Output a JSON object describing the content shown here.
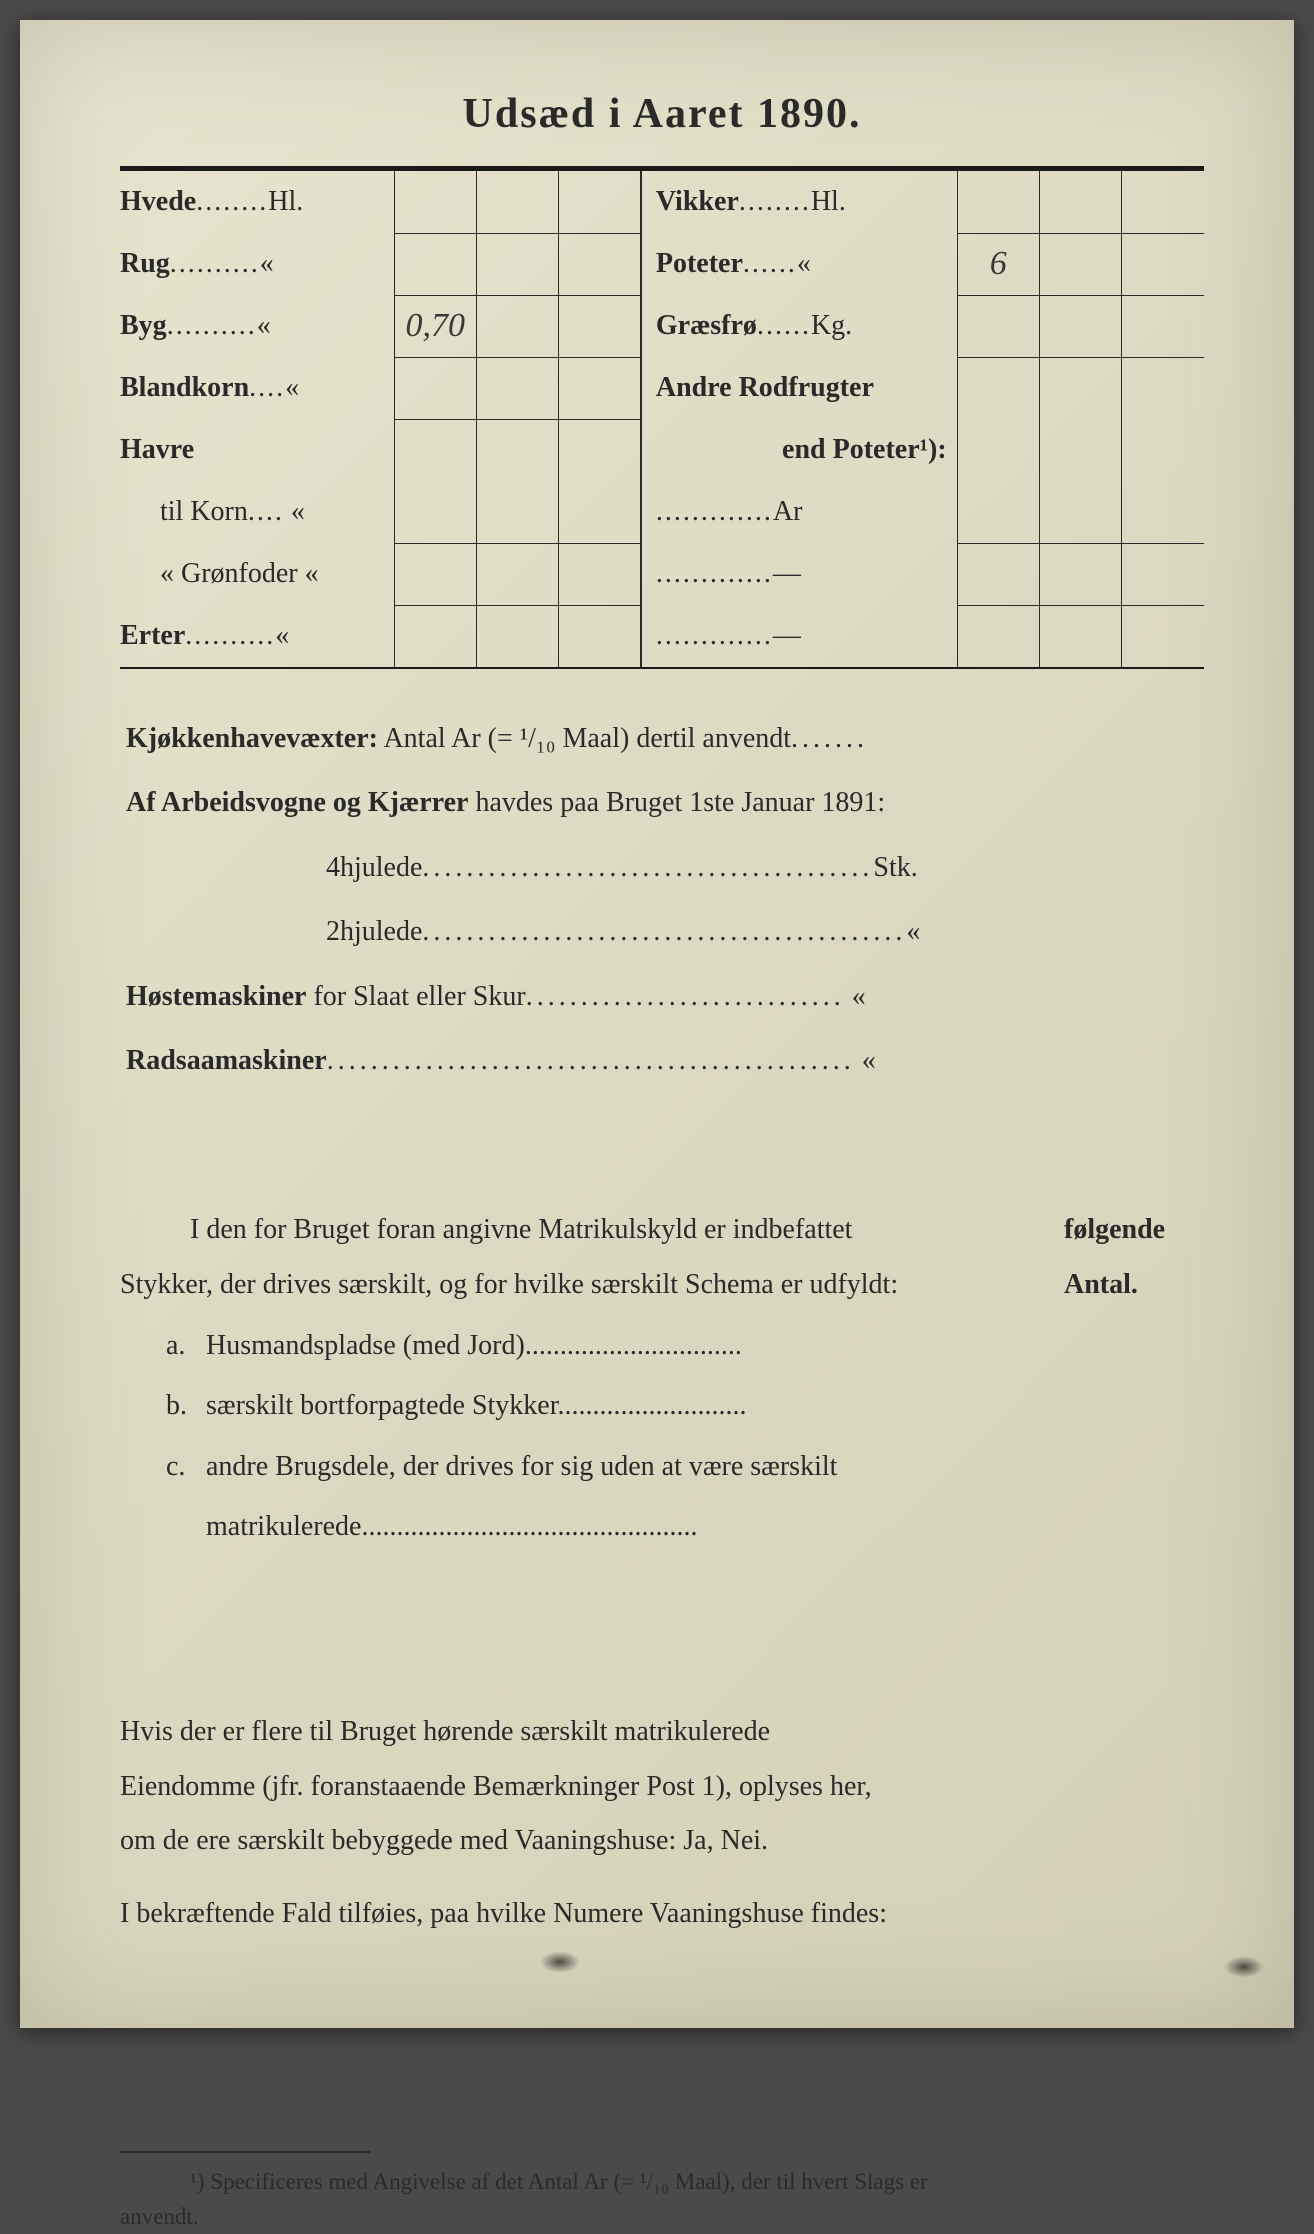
{
  "title": "Udsæd i Aaret 1890.",
  "seed": {
    "left": [
      {
        "label": "Hvede",
        "dots": "........",
        "unit": "Hl.",
        "vals": [
          "",
          "",
          ""
        ]
      },
      {
        "label": "Rug",
        "dots": "..........",
        "unit": "«",
        "vals": [
          "",
          "",
          ""
        ]
      },
      {
        "label": "Byg",
        "dots": "..........",
        "unit": "«",
        "vals": [
          "0,70",
          "",
          ""
        ]
      },
      {
        "label": "Blandkorn",
        "dots": "....",
        "unit": "«",
        "vals": [
          "",
          "",
          ""
        ]
      },
      {
        "label": "Havre",
        "dots": "",
        "unit": "",
        "vals": [
          "",
          "",
          ""
        ],
        "nobottom": true
      },
      {
        "label": "til Korn",
        "dots": "....",
        "unit": "«",
        "vals": [
          "",
          "",
          ""
        ],
        "sub": true
      },
      {
        "label": "«   Grønfoder",
        "dots": "",
        "unit": "«",
        "vals": [
          "",
          "",
          ""
        ],
        "sub": true
      },
      {
        "label": "Erter",
        "dots": "..........",
        "unit": "«",
        "vals": [
          "",
          "",
          ""
        ]
      }
    ],
    "right": [
      {
        "label": "Vikker",
        "dots": "........",
        "unit": "Hl.",
        "vals": [
          "",
          "",
          ""
        ]
      },
      {
        "label": "Poteter",
        "dots": "......",
        "unit": "«",
        "vals": [
          "6",
          "",
          ""
        ]
      },
      {
        "label": "Græsfrø",
        "dots": "......",
        "unit": "Kg.",
        "vals": [
          "",
          "",
          ""
        ]
      },
      {
        "label": "Andre Rodfrugter",
        "dots": "",
        "unit": "",
        "vals": [
          "",
          "",
          ""
        ],
        "nobottom": true
      },
      {
        "label": "end Poteter¹):",
        "dots": "",
        "unit": "",
        "vals": [
          "",
          "",
          ""
        ],
        "right": true,
        "nobottom": true
      },
      {
        "label": "",
        "dots": ".............",
        "unit": "Ar",
        "vals": [
          "",
          "",
          ""
        ]
      },
      {
        "label": "",
        "dots": ".............",
        "unit": "—",
        "vals": [
          "",
          "",
          ""
        ]
      },
      {
        "label": "",
        "dots": ".............",
        "unit": "—",
        "vals": [
          "",
          "",
          ""
        ]
      }
    ]
  },
  "mid": {
    "l1a": "Kjøkkenhavevæxter:",
    "l1b": " Antal Ar (= ¹/₁₀ Maal) dertil anvendt",
    "l2a": "Af Arbeidsvogne og Kjærrer",
    "l2b": " havdes paa Bruget 1ste Januar 1891:",
    "l3": "4hjulede",
    "l3u": "Stk.",
    "l4": "2hjulede",
    "l4u": "«",
    "l5a": "Høstemaskiner",
    "l5b": " for Slaat eller Skur",
    "l5u": "«",
    "l6": "Radsaamaskiner",
    "l6u": "«"
  },
  "sec2": {
    "rt1": "følgende",
    "rt2": "Antal.",
    "p1": "I den for Bruget foran angivne Matrikulskyld er indbefattet",
    "p2": "Stykker, der drives særskilt, og for hvilke særskilt Schema er udfyldt:",
    "a": "Husmandspladse (med Jord)",
    "b": "særskilt bortforpagtede Stykker",
    "c1": "andre Brugsdele,",
    "c2": " der drives for sig uden at være særskilt",
    "c3": "matrikulerede"
  },
  "sec3": {
    "p1": "Hvis der er flere til Bruget hørende særskilt matrikulerede",
    "p2": "Eiendomme (jfr. foranstaaende Bemærkninger Post 1), oplyses her,",
    "p3": "om de ere særskilt bebyggede med ",
    "p3b": "Vaaningshuse:",
    "p3c": " Ja, Nei.",
    "p4": "I bekræftende Fald tilføies, paa ",
    "p4b": "hvilke Numere",
    "p4c": " Vaaningshuse findes:"
  },
  "footnote": {
    "t1": "¹) Specificeres med Angivelse af det Antal Ar (= ¹/₁₀ Maal), der til hvert Slags er",
    "t2": "anvendt."
  },
  "colors": {
    "ink": "#2a2a28",
    "paper": "#e0ddc6"
  }
}
